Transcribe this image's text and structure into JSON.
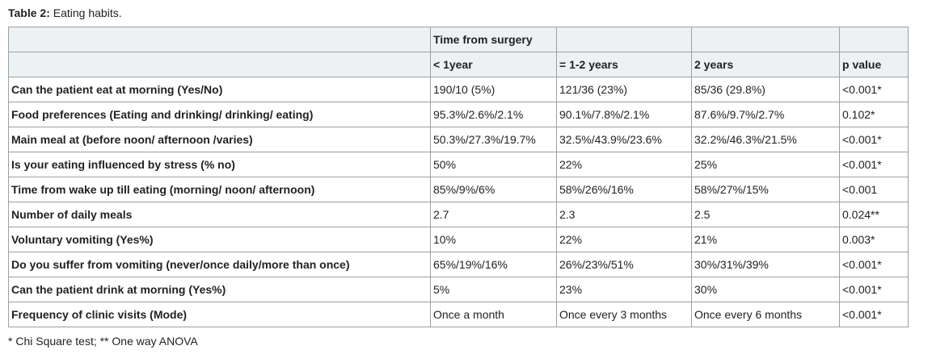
{
  "caption": {
    "label": "Table 2:",
    "title": "Eating habits."
  },
  "header": {
    "group_label": "Time from surgery",
    "columns": [
      "< 1year",
      "= 1-2 years",
      "2 years",
      "p  value"
    ]
  },
  "rows": [
    {
      "label": "Can the patient eat at morning (Yes/No)",
      "cells": [
        "190/10 (5%)",
        "121/36 (23%)",
        "85/36 (29.8%)",
        "<0.001*"
      ]
    },
    {
      "label": "Food preferences (Eating and drinking/ drinking/ eating)",
      "cells": [
        "95.3%/2.6%/2.1%",
        "90.1%/7.8%/2.1%",
        "87.6%/9.7%/2.7%",
        "0.102*"
      ]
    },
    {
      "label": "Main meal at (before noon/ afternoon /varies)",
      "cells": [
        "50.3%/27.3%/19.7%",
        "32.5%/43.9%/23.6%",
        "32.2%/46.3%/21.5%",
        "<0.001*"
      ]
    },
    {
      "label": "Is your eating influenced by stress (% no)",
      "cells": [
        "50%",
        "22%",
        "25%",
        "<0.001*"
      ]
    },
    {
      "label": "Time from wake up till eating (morning/ noon/ afternoon)",
      "cells": [
        "85%/9%/6%",
        "58%/26%/16%",
        "58%/27%/15%",
        "<0.001"
      ]
    },
    {
      "label": "Number of daily meals",
      "cells": [
        "2.7",
        "2.3",
        "2.5",
        "0.024**"
      ]
    },
    {
      "label": "Voluntary vomiting (Yes%)",
      "cells": [
        "10%",
        "22%",
        "21%",
        "0.003*"
      ]
    },
    {
      "label": "Do you suffer from vomiting (never/once daily/more than once)",
      "cells": [
        "65%/19%/16%",
        "26%/23%/51%",
        "30%/31%/39%",
        "<0.001*"
      ]
    },
    {
      "label": "Can the patient drink  at morning (Yes%)",
      "cells": [
        "5%",
        "23%",
        "30%",
        "<0.001*"
      ]
    },
    {
      "label": "Frequency of clinic visits (Mode)",
      "cells": [
        "Once a month",
        "Once every 3 months",
        "Once every 6 months",
        "<0.001*"
      ]
    }
  ],
  "footnote": "* Chi Square test; ** One way ANOVA"
}
